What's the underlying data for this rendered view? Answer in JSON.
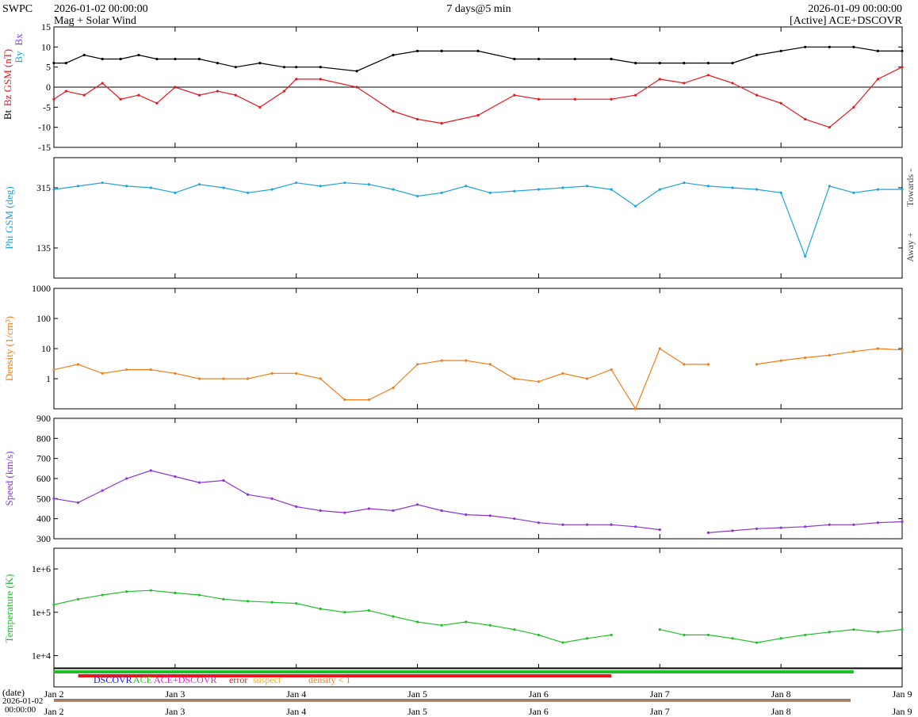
{
  "header": {
    "org": "SWPC",
    "start": "2026-01-02 00:00:00",
    "subtitle": "Mag + Solar Wind",
    "span": "7 days@5 min",
    "end": "2026-01-09 00:00:00",
    "source": "[Active] ACE+DSCOVR"
  },
  "colors": {
    "bt": "#000000",
    "bz": "#e8161c",
    "bx": "#7b3fd6",
    "by": "#19a9d6",
    "phi": "#1ea4d8",
    "phi_fill_towards": "#c8ecfa",
    "phi_fill_away": "#f8c7cb",
    "bz_fill": "#d9c9f2",
    "density": "#f07f1a",
    "speed": "#8b35d6",
    "temperature": "#1fbf2a",
    "error": "#e8161c",
    "suspect": "#f2b000",
    "dscovr": "#1414e0",
    "ace": "#1fbf2a",
    "ace_dscovr": "#e01fd0"
  },
  "time_axis": {
    "ticks": [
      "Jan 2",
      "Jan 3",
      "Jan 4",
      "Jan 5",
      "Jan 6",
      "Jan 7",
      "Jan 8",
      "Jan 9"
    ]
  },
  "source_legend": {
    "dscovr": "DSCOVR",
    "ace": "ACE",
    "ace_dscovr": "ACE+DSCOVR",
    "error": "error",
    "suspect": "suspect",
    "density": "density < 1"
  },
  "date_strip": {
    "label": "(date)",
    "start_date": "2026-01-02",
    "start_time": "00:00:00"
  },
  "chart_data": [
    {
      "type": "line",
      "id": "mag",
      "ylabel_bt": "Bt",
      "ylabel_bz": "Bz GSM (nT)",
      "ylabel_bx": "Bx",
      "ylabel_by": "By",
      "ylim": [
        -15,
        15
      ],
      "yticks": [
        "-15",
        "-10",
        "-5",
        "0",
        "5",
        "10",
        "15"
      ],
      "x_days": [
        0,
        0.1,
        0.25,
        0.4,
        0.55,
        0.7,
        0.85,
        1.0,
        1.2,
        1.35,
        1.5,
        1.7,
        1.9,
        2.0,
        2.2,
        2.5,
        2.8,
        3.0,
        3.2,
        3.5,
        3.8,
        4.0,
        4.3,
        4.6,
        4.8,
        5.0,
        5.2,
        5.4,
        5.6,
        5.8,
        6.0,
        6.2,
        6.4,
        6.6,
        6.8,
        7.0
      ],
      "series": [
        {
          "name": "Bt",
          "values": [
            6,
            6,
            8,
            7,
            7,
            8,
            7,
            7,
            7,
            6,
            5,
            6,
            5,
            5,
            5,
            4,
            8,
            9,
            9,
            9,
            7,
            7,
            7,
            7,
            6,
            6,
            6,
            6,
            6,
            8,
            9,
            10,
            10,
            10,
            9,
            9
          ]
        },
        {
          "name": "Bz GSM",
          "values": [
            -3,
            -1,
            -2,
            1,
            -3,
            -2,
            -4,
            0,
            -2,
            -1,
            -2,
            -5,
            -1,
            2,
            2,
            0,
            -6,
            -8,
            -9,
            -7,
            -2,
            -3,
            -3,
            -3,
            -2,
            2,
            1,
            3,
            1,
            -2,
            -4,
            -8,
            -10,
            -5,
            2,
            5
          ]
        }
      ]
    },
    {
      "type": "line",
      "id": "phi",
      "ylabel": "Phi GSM (deg)",
      "right_top": "Towards -",
      "right_bottom": "Away +",
      "ylim": [
        45,
        405
      ],
      "yticks": [
        "135",
        "315"
      ],
      "x_days": [
        0,
        0.2,
        0.4,
        0.6,
        0.8,
        1.0,
        1.2,
        1.4,
        1.6,
        1.8,
        2.0,
        2.2,
        2.4,
        2.6,
        2.8,
        3.0,
        3.2,
        3.4,
        3.6,
        3.8,
        4.0,
        4.2,
        4.4,
        4.6,
        4.8,
        5.0,
        5.2,
        5.4,
        5.6,
        5.8,
        6.0,
        6.2,
        6.4,
        6.6,
        6.8,
        7.0
      ],
      "series": [
        {
          "name": "Phi",
          "values": [
            310,
            320,
            330,
            320,
            315,
            300,
            325,
            315,
            300,
            310,
            330,
            320,
            330,
            325,
            310,
            290,
            300,
            320,
            300,
            305,
            310,
            315,
            320,
            310,
            260,
            310,
            330,
            320,
            315,
            310,
            300,
            110,
            320,
            300,
            310,
            310
          ]
        }
      ]
    },
    {
      "type": "line",
      "id": "density",
      "ylabel": "Density (1/cm³)",
      "yscale": "log",
      "ylim": [
        0.1,
        1000
      ],
      "yticks": [
        "1",
        "10",
        "100",
        "1000"
      ],
      "x_days": [
        0,
        0.2,
        0.4,
        0.6,
        0.8,
        1.0,
        1.2,
        1.4,
        1.6,
        1.8,
        2.0,
        2.2,
        2.4,
        2.6,
        2.8,
        3.0,
        3.2,
        3.4,
        3.6,
        3.8,
        4.0,
        4.2,
        4.4,
        4.6,
        4.8,
        5.0,
        5.2,
        5.4,
        5.6,
        5.8,
        6.0,
        6.2,
        6.4,
        6.6,
        6.8,
        7.0
      ],
      "series": [
        {
          "name": "Density",
          "values": [
            2,
            3,
            1.5,
            2,
            2,
            1.5,
            1,
            1,
            1,
            1.5,
            1.5,
            1,
            0.2,
            0.2,
            0.5,
            3,
            4,
            4,
            3,
            1,
            0.8,
            1.5,
            1,
            2,
            0.1,
            10,
            3,
            3,
            null,
            3,
            4,
            5,
            6,
            8,
            10,
            9
          ]
        }
      ]
    },
    {
      "type": "line",
      "id": "speed",
      "ylabel": "Speed (km/s)",
      "ylim": [
        300,
        900
      ],
      "yticks": [
        "300",
        "400",
        "500",
        "600",
        "700",
        "800",
        "900"
      ],
      "x_days": [
        0,
        0.2,
        0.4,
        0.6,
        0.8,
        1.0,
        1.2,
        1.4,
        1.6,
        1.8,
        2.0,
        2.2,
        2.4,
        2.6,
        2.8,
        3.0,
        3.2,
        3.4,
        3.6,
        3.8,
        4.0,
        4.2,
        4.4,
        4.6,
        4.8,
        5.0,
        5.2,
        5.4,
        5.6,
        5.8,
        6.0,
        6.2,
        6.4,
        6.6,
        6.8,
        7.0
      ],
      "series": [
        {
          "name": "Speed",
          "values": [
            500,
            480,
            540,
            600,
            640,
            610,
            580,
            590,
            520,
            500,
            460,
            440,
            430,
            450,
            440,
            470,
            440,
            420,
            415,
            400,
            380,
            370,
            370,
            370,
            360,
            345,
            null,
            330,
            340,
            350,
            355,
            360,
            370,
            370,
            380,
            385
          ]
        }
      ]
    },
    {
      "type": "line",
      "id": "temperature",
      "ylabel": "Temperature (K)",
      "yscale": "log",
      "ylim": [
        5000,
        3000000
      ],
      "yticks": [
        "1e+4",
        "1e+5",
        "1e+6"
      ],
      "x_days": [
        0,
        0.2,
        0.4,
        0.6,
        0.8,
        1.0,
        1.2,
        1.4,
        1.6,
        1.8,
        2.0,
        2.2,
        2.4,
        2.6,
        2.8,
        3.0,
        3.2,
        3.4,
        3.6,
        3.8,
        4.0,
        4.2,
        4.4,
        4.6,
        4.8,
        5.0,
        5.2,
        5.4,
        5.6,
        5.8,
        6.0,
        6.2,
        6.4,
        6.6,
        6.8,
        7.0
      ],
      "series": [
        {
          "name": "Temperature",
          "values": [
            150000,
            200000,
            250000,
            300000,
            320000,
            280000,
            250000,
            200000,
            180000,
            170000,
            160000,
            120000,
            100000,
            110000,
            80000,
            60000,
            50000,
            60000,
            50000,
            40000,
            30000,
            20000,
            25000,
            30000,
            null,
            40000,
            30000,
            30000,
            25000,
            20000,
            25000,
            30000,
            35000,
            40000,
            35000,
            40000
          ]
        }
      ]
    }
  ]
}
